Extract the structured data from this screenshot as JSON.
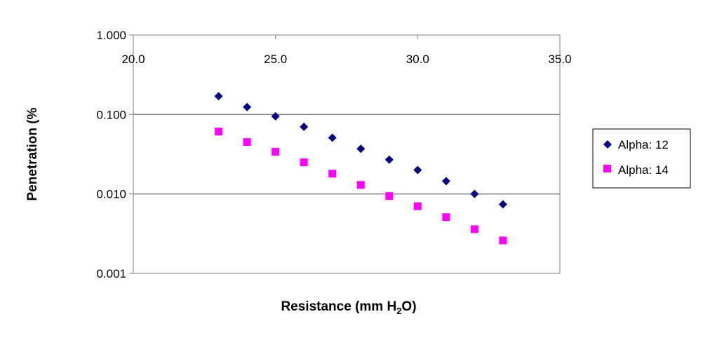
{
  "chart_data": {
    "type": "scatter",
    "xlabel": "Resistance (mm H",
    "xlabel_sub": "2",
    "xlabel_end": "O)",
    "ylabel": "Penetration (%",
    "xlim": [
      20.0,
      35.0
    ],
    "ylim": [
      0.001,
      1.0
    ],
    "y_scale": "log",
    "x_ticks": [
      "20.0",
      "25.0",
      "30.0",
      "35.0"
    ],
    "x_tick_values": [
      20,
      25,
      30,
      35
    ],
    "y_ticks": [
      "0.001",
      "0.010",
      "0.100",
      "1.000"
    ],
    "y_tick_values": [
      0.001,
      0.01,
      0.1,
      1.0
    ],
    "x_axis_position": "top",
    "grid": "horizontal",
    "legend_position": "right",
    "series": [
      {
        "name": "Alpha: 12",
        "marker": "diamond",
        "color": "#000080",
        "x": [
          23,
          24,
          25,
          26,
          27,
          28,
          29,
          30,
          31,
          32,
          33
        ],
        "y": [
          0.17,
          0.124,
          0.095,
          0.07,
          0.051,
          0.037,
          0.027,
          0.02,
          0.0145,
          0.01,
          0.0074
        ]
      },
      {
        "name": "Alpha: 14",
        "marker": "square",
        "color": "#ff00ff",
        "x": [
          23,
          24,
          25,
          26,
          27,
          28,
          29,
          30,
          31,
          32,
          33
        ],
        "y": [
          0.061,
          0.045,
          0.034,
          0.025,
          0.018,
          0.013,
          0.0094,
          0.007,
          0.0051,
          0.0036,
          0.0026
        ]
      }
    ]
  }
}
